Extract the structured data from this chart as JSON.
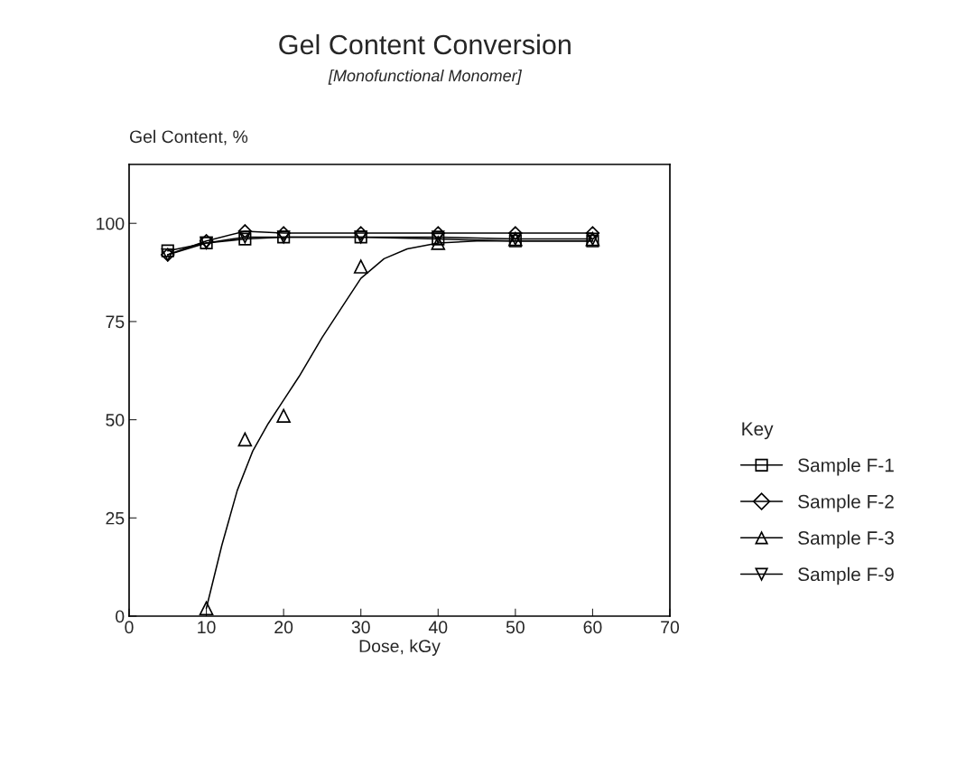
{
  "chart_data": {
    "type": "line",
    "title": "Gel Content Conversion",
    "subtitle": "[Monofunctional Monomer]",
    "xlabel": "Dose, kGy",
    "ylabel": "Gel Content, %",
    "legend_title": "Key",
    "legend": "right",
    "xlim": [
      0,
      70
    ],
    "xticks": [
      0,
      10,
      20,
      30,
      40,
      50,
      60,
      70
    ],
    "ylim": [
      0,
      115
    ],
    "yticks": [
      0,
      25,
      50,
      75,
      100
    ],
    "grid": false,
    "series": [
      {
        "name": "Sample F-1",
        "color": "#000000",
        "marker": "square",
        "x": [
          5,
          10,
          15,
          20,
          30,
          40,
          50,
          60
        ],
        "values": [
          93,
          95,
          96,
          96.5,
          96.5,
          96,
          95.5,
          95.5
        ]
      },
      {
        "name": "Sample F-2",
        "color": "#000000",
        "marker": "diamond",
        "x": [
          5,
          10,
          15,
          20,
          30,
          40,
          50,
          60
        ],
        "values": [
          92,
          95.5,
          98,
          97.5,
          97.5,
          97.5,
          97.5,
          97.5
        ]
      },
      {
        "name": "Sample F-3",
        "color": "#000000",
        "marker": "triangle",
        "type": "scatter",
        "x": [
          10,
          15,
          20,
          30,
          40,
          50,
          60
        ],
        "values": [
          2,
          45,
          51,
          89,
          95,
          96,
          96
        ]
      },
      {
        "name": "Sample F-9",
        "color": "#000000",
        "marker": "triangle_down",
        "x": [
          5,
          10,
          15,
          20,
          30,
          40,
          50,
          60
        ],
        "values": [
          92,
          95,
          96.5,
          96.5,
          96.5,
          96.5,
          96,
          96
        ]
      },
      {
        "color": "#000000",
        "marker": "none",
        "type": "line",
        "x": [
          10,
          12,
          14,
          16,
          18,
          20,
          22,
          25,
          28,
          30,
          33,
          36,
          40,
          45,
          50,
          60
        ],
        "values": [
          2,
          18,
          32,
          42,
          49,
          55,
          61,
          71,
          80,
          86,
          91,
          93.5,
          95,
          95.5,
          95.5,
          95.5
        ]
      }
    ]
  }
}
